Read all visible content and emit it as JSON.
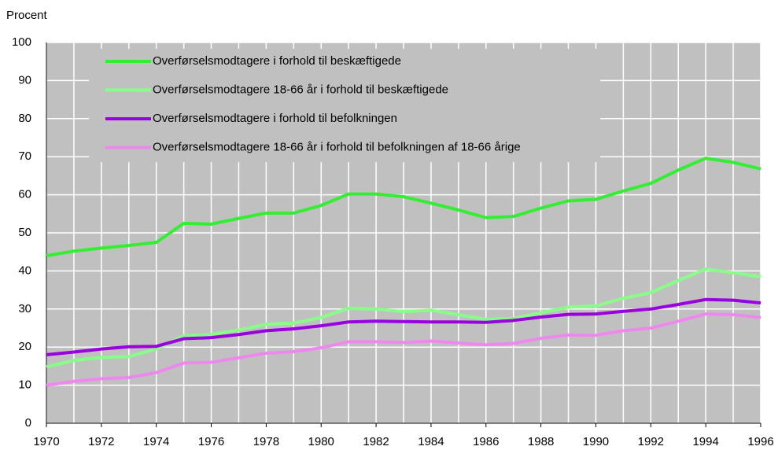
{
  "chart_data": {
    "type": "line",
    "y_label": "Procent",
    "x": [
      1970,
      1971,
      1972,
      1973,
      1974,
      1975,
      1976,
      1977,
      1978,
      1979,
      1980,
      1981,
      1982,
      1983,
      1984,
      1985,
      1986,
      1987,
      1988,
      1989,
      1990,
      1991,
      1992,
      1993,
      1994,
      1995,
      1996
    ],
    "xlim": [
      1970,
      1996
    ],
    "xticks": [
      1970,
      1972,
      1974,
      1976,
      1978,
      1980,
      1982,
      1984,
      1986,
      1988,
      1990,
      1992,
      1994,
      1996
    ],
    "ylim": [
      0,
      100
    ],
    "yticks": [
      0,
      10,
      20,
      30,
      40,
      50,
      60,
      70,
      80,
      90,
      100
    ],
    "grid": true,
    "legend": "upper left",
    "series": [
      {
        "name": "Overførselsmodtagere i forhold til beskæftigede",
        "color": "#33ee33",
        "values": [
          44,
          45.2,
          46,
          46.7,
          47.5,
          52.5,
          52.3,
          53.8,
          55.2,
          55.2,
          57.2,
          60.2,
          60.2,
          59.5,
          57.8,
          56,
          54,
          54.3,
          56.5,
          58.4,
          58.8,
          61,
          63,
          66.5,
          69.6,
          68.5,
          66.8
        ]
      },
      {
        "name": "Overførselsmodtagere 18-66 år i forhold til beskæftigede",
        "color": "#88ff88",
        "values": [
          14.8,
          16.5,
          17.3,
          17.5,
          19.5,
          23,
          23.3,
          24.5,
          26,
          26.3,
          27.8,
          30.2,
          30,
          29.3,
          29.7,
          28.5,
          27.3,
          27.5,
          29,
          30.5,
          30.8,
          32.8,
          34.3,
          37.5,
          40.5,
          39.5,
          38.5
        ]
      },
      {
        "name": "Overførselsmodtagere i forhold til befolkningen",
        "color": "#9900dd",
        "values": [
          18,
          18.7,
          19.5,
          20.1,
          20.2,
          22.2,
          22.5,
          23.3,
          24.3,
          24.8,
          25.6,
          26.6,
          26.8,
          26.7,
          26.6,
          26.6,
          26.5,
          27,
          27.9,
          28.6,
          28.7,
          29.4,
          30,
          31.2,
          32.5,
          32.3,
          31.6
        ]
      },
      {
        "name": "Overførselsmodtagere 18-66 år i forhold til befolkningen af 18-66 årige",
        "color": "#ee88ee",
        "values": [
          10,
          11,
          11.7,
          12,
          13.3,
          15.8,
          16,
          17.2,
          18.4,
          18.8,
          19.8,
          21.4,
          21.4,
          21.2,
          21.6,
          21.1,
          20.6,
          21,
          22.3,
          23.2,
          23.1,
          24.3,
          25,
          26.8,
          28.7,
          28.5,
          27.8
        ]
      }
    ]
  }
}
